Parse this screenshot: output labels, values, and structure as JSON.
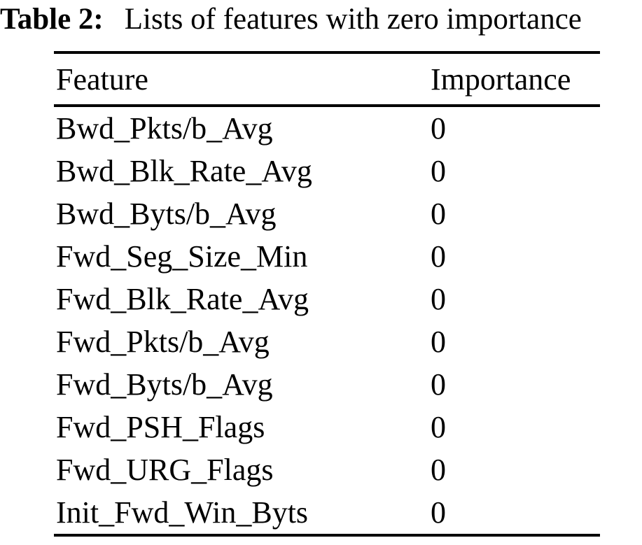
{
  "page": {
    "background_color": "#ffffff",
    "text_color": "#000000"
  },
  "caption": {
    "label": "Table 2:",
    "text": "Lists of features with zero importance"
  },
  "table": {
    "columns": [
      "Feature",
      "Importance"
    ],
    "rows": [
      {
        "feature": "Bwd_Pkts/b_Avg",
        "importance": "0"
      },
      {
        "feature": "Bwd_Blk_Rate_Avg",
        "importance": "0"
      },
      {
        "feature": "Bwd_Byts/b_Avg",
        "importance": "0"
      },
      {
        "feature": "Fwd_Seg_Size_Min",
        "importance": "0"
      },
      {
        "feature": "Fwd_Blk_Rate_Avg",
        "importance": "0"
      },
      {
        "feature": "Fwd_Pkts/b_Avg",
        "importance": "0"
      },
      {
        "feature": "Fwd_Byts/b_Avg",
        "importance": "0"
      },
      {
        "feature": "Fwd_PSH_Flags",
        "importance": "0"
      },
      {
        "feature": "Fwd_URG_Flags",
        "importance": "0"
      },
      {
        "feature": "Init_Fwd_Win_Byts",
        "importance": "0"
      }
    ]
  }
}
